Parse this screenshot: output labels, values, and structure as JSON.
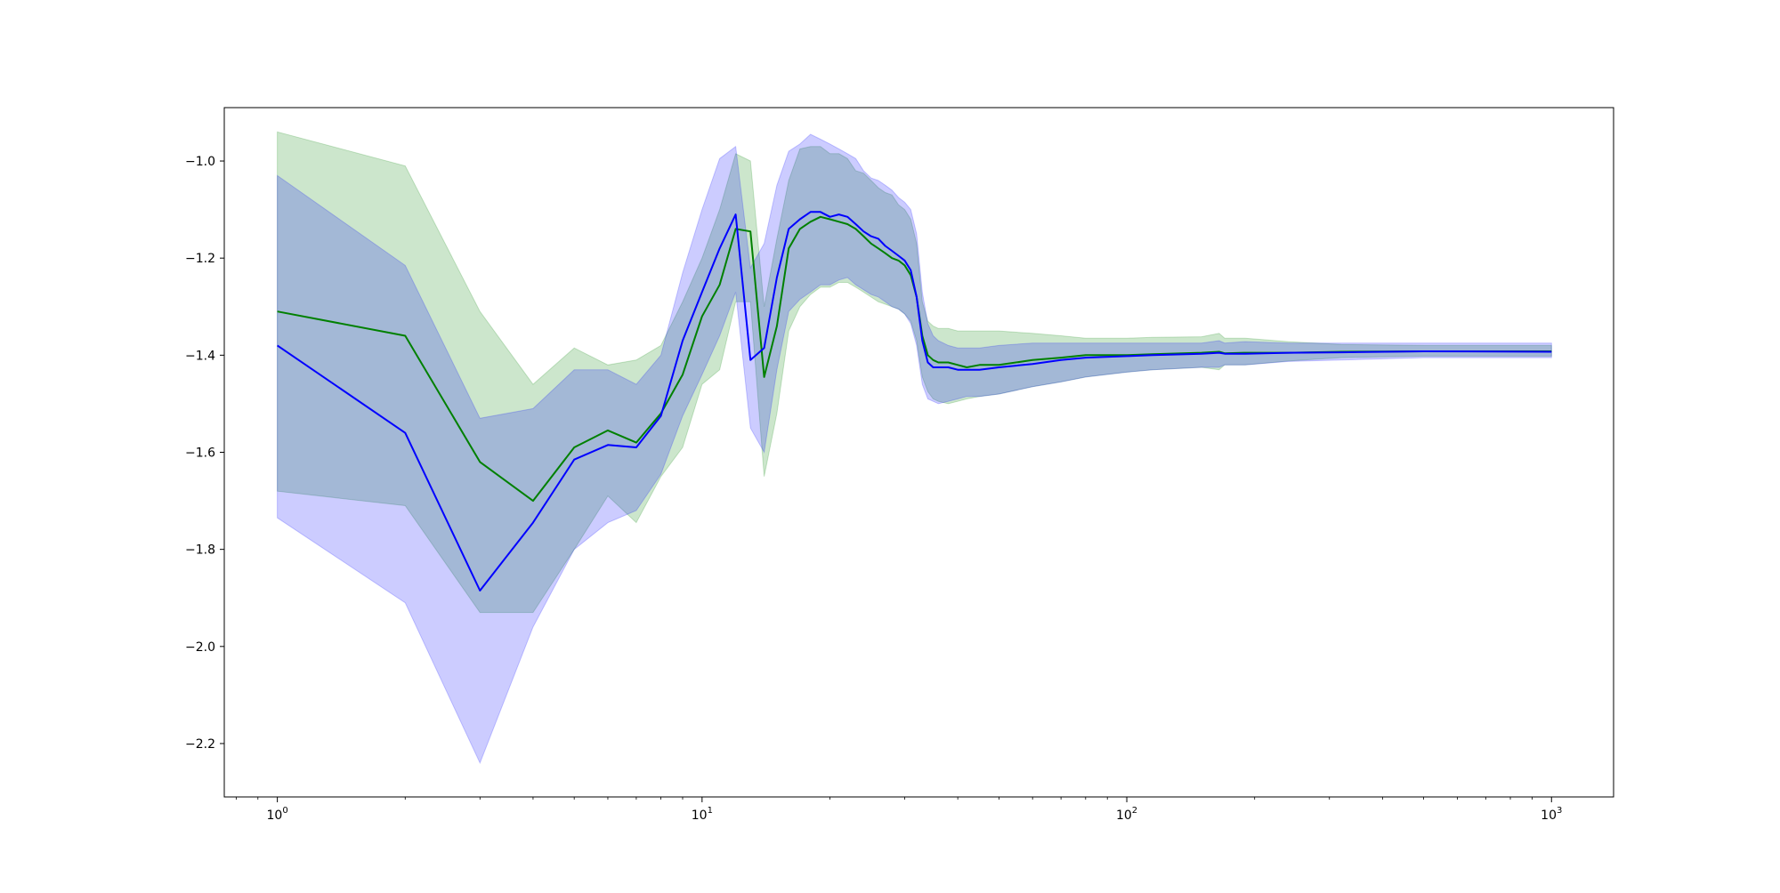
{
  "chart_data": {
    "type": "line",
    "title": "",
    "xlabel": "",
    "ylabel": "",
    "xscale": "log",
    "xlim": [
      0.75,
      1400
    ],
    "ylim": [
      -2.31,
      -0.89
    ],
    "grid": false,
    "x_ticks": [
      {
        "value": 1,
        "base": "10",
        "exp": "0"
      },
      {
        "value": 10,
        "base": "10",
        "exp": "1"
      },
      {
        "value": 100,
        "base": "10",
        "exp": "2"
      },
      {
        "value": 1000,
        "base": "10",
        "exp": "3"
      }
    ],
    "y_ticks": [
      {
        "value": -1.0,
        "label": "−1.0"
      },
      {
        "value": -1.2,
        "label": "−1.2"
      },
      {
        "value": -1.4,
        "label": "−1.4"
      },
      {
        "value": -1.6,
        "label": "−1.6"
      },
      {
        "value": -1.8,
        "label": "−1.8"
      },
      {
        "value": -2.0,
        "label": "−2.0"
      },
      {
        "value": -2.2,
        "label": "−2.2"
      }
    ],
    "series": [
      {
        "color": "#008000",
        "band_color": "#008000",
        "band_opacity": 0.2,
        "x": [
          1,
          2,
          3,
          4,
          5,
          6,
          7,
          8,
          9,
          10,
          11,
          12,
          13,
          14,
          15,
          16,
          17,
          18,
          19,
          20,
          21,
          22,
          23,
          24,
          25,
          26,
          27,
          28,
          29,
          30,
          31,
          32,
          33,
          34,
          35,
          36,
          38,
          40,
          42,
          45,
          50,
          60,
          70,
          80,
          100,
          115,
          150,
          165,
          170,
          190,
          240,
          320,
          500,
          1000
        ],
        "y": [
          -1.31,
          -1.36,
          -1.62,
          -1.7,
          -1.59,
          -1.555,
          -1.58,
          -1.52,
          -1.44,
          -1.32,
          -1.255,
          -1.14,
          -1.145,
          -1.445,
          -1.34,
          -1.18,
          -1.14,
          -1.125,
          -1.115,
          -1.12,
          -1.125,
          -1.13,
          -1.14,
          -1.155,
          -1.17,
          -1.18,
          -1.19,
          -1.2,
          -1.205,
          -1.215,
          -1.235,
          -1.28,
          -1.36,
          -1.4,
          -1.41,
          -1.415,
          -1.415,
          -1.42,
          -1.425,
          -1.42,
          -1.42,
          -1.41,
          -1.405,
          -1.4,
          -1.4,
          -1.398,
          -1.395,
          -1.393,
          -1.396,
          -1.395,
          -1.395,
          -1.393,
          -1.392,
          -1.392
        ],
        "upper": [
          -0.94,
          -1.01,
          -1.31,
          -1.46,
          -1.385,
          -1.42,
          -1.41,
          -1.38,
          -1.29,
          -1.2,
          -1.1,
          -0.985,
          -1.0,
          -1.3,
          -1.16,
          -1.04,
          -0.975,
          -0.97,
          -0.97,
          -0.985,
          -0.985,
          -0.995,
          -1.02,
          -1.025,
          -1.04,
          -1.055,
          -1.065,
          -1.07,
          -1.09,
          -1.1,
          -1.12,
          -1.17,
          -1.29,
          -1.33,
          -1.34,
          -1.345,
          -1.345,
          -1.35,
          -1.35,
          -1.35,
          -1.35,
          -1.355,
          -1.36,
          -1.365,
          -1.365,
          -1.363,
          -1.362,
          -1.355,
          -1.365,
          -1.365,
          -1.372,
          -1.378,
          -1.38,
          -1.38
        ],
        "lower": [
          -1.68,
          -1.71,
          -1.93,
          -1.93,
          -1.8,
          -1.69,
          -1.745,
          -1.65,
          -1.59,
          -1.46,
          -1.43,
          -1.29,
          -1.29,
          -1.65,
          -1.52,
          -1.35,
          -1.3,
          -1.275,
          -1.26,
          -1.26,
          -1.25,
          -1.25,
          -1.26,
          -1.27,
          -1.28,
          -1.29,
          -1.295,
          -1.3,
          -1.305,
          -1.315,
          -1.33,
          -1.37,
          -1.445,
          -1.475,
          -1.49,
          -1.495,
          -1.5,
          -1.495,
          -1.49,
          -1.485,
          -1.48,
          -1.465,
          -1.455,
          -1.445,
          -1.435,
          -1.43,
          -1.425,
          -1.43,
          -1.42,
          -1.42,
          -1.412,
          -1.405,
          -1.402,
          -1.402
        ]
      },
      {
        "color": "#0000ff",
        "band_color": "#0000ff",
        "band_opacity": 0.2,
        "x": [
          1,
          2,
          3,
          4,
          5,
          6,
          7,
          8,
          9,
          10,
          11,
          12,
          13,
          14,
          15,
          16,
          17,
          18,
          19,
          20,
          21,
          22,
          23,
          24,
          25,
          26,
          27,
          28,
          29,
          30,
          31,
          32,
          33,
          34,
          35,
          36,
          38,
          40,
          42,
          45,
          50,
          60,
          70,
          80,
          100,
          115,
          150,
          165,
          170,
          190,
          240,
          320,
          500,
          1000
        ],
        "y": [
          -1.38,
          -1.56,
          -1.885,
          -1.745,
          -1.615,
          -1.585,
          -1.59,
          -1.525,
          -1.37,
          -1.27,
          -1.18,
          -1.11,
          -1.41,
          -1.385,
          -1.24,
          -1.14,
          -1.12,
          -1.105,
          -1.105,
          -1.115,
          -1.11,
          -1.115,
          -1.13,
          -1.145,
          -1.155,
          -1.16,
          -1.175,
          -1.185,
          -1.195,
          -1.205,
          -1.225,
          -1.28,
          -1.37,
          -1.415,
          -1.425,
          -1.425,
          -1.425,
          -1.43,
          -1.43,
          -1.43,
          -1.425,
          -1.418,
          -1.41,
          -1.405,
          -1.402,
          -1.4,
          -1.397,
          -1.395,
          -1.397,
          -1.397,
          -1.395,
          -1.394,
          -1.392,
          -1.393
        ],
        "upper": [
          -1.03,
          -1.215,
          -1.53,
          -1.51,
          -1.43,
          -1.43,
          -1.46,
          -1.4,
          -1.23,
          -1.1,
          -0.995,
          -0.97,
          -1.22,
          -1.17,
          -1.05,
          -0.98,
          -0.965,
          -0.945,
          -0.955,
          -0.965,
          -0.975,
          -0.985,
          -0.995,
          -1.02,
          -1.035,
          -1.04,
          -1.05,
          -1.06,
          -1.075,
          -1.085,
          -1.1,
          -1.15,
          -1.27,
          -1.335,
          -1.36,
          -1.37,
          -1.38,
          -1.385,
          -1.385,
          -1.385,
          -1.38,
          -1.375,
          -1.375,
          -1.375,
          -1.375,
          -1.375,
          -1.375,
          -1.37,
          -1.375,
          -1.372,
          -1.375,
          -1.375,
          -1.375,
          -1.375
        ],
        "lower": [
          -1.735,
          -1.91,
          -2.24,
          -1.96,
          -1.8,
          -1.745,
          -1.72,
          -1.645,
          -1.525,
          -1.44,
          -1.36,
          -1.27,
          -1.55,
          -1.6,
          -1.43,
          -1.31,
          -1.285,
          -1.27,
          -1.255,
          -1.255,
          -1.245,
          -1.24,
          -1.255,
          -1.265,
          -1.275,
          -1.28,
          -1.29,
          -1.3,
          -1.305,
          -1.315,
          -1.335,
          -1.38,
          -1.46,
          -1.49,
          -1.495,
          -1.5,
          -1.495,
          -1.49,
          -1.485,
          -1.485,
          -1.48,
          -1.465,
          -1.455,
          -1.445,
          -1.435,
          -1.43,
          -1.425,
          -1.425,
          -1.42,
          -1.42,
          -1.413,
          -1.41,
          -1.405,
          -1.405
        ]
      }
    ]
  }
}
